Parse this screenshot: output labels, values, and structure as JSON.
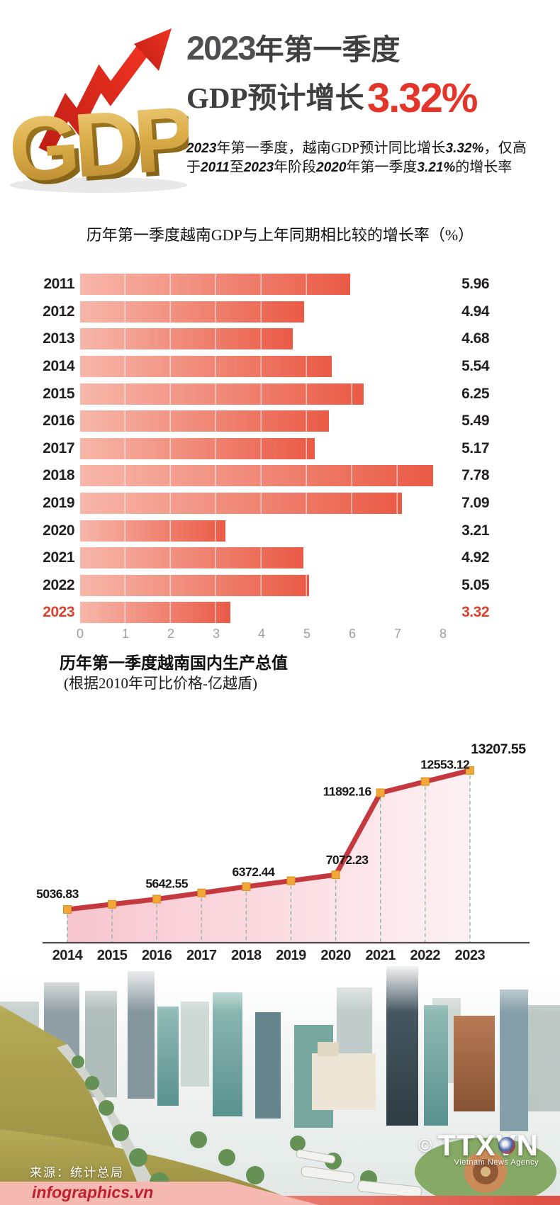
{
  "header": {
    "logo_text": "GDP",
    "title_prefix": "2023",
    "title_suffix": "年第一季度",
    "title_line2": "GDP预计增长",
    "title_value": "3.32%",
    "subtitle_segments": [
      {
        "t": "2023",
        "em": true
      },
      {
        "t": "年第一季度，越南GDP预计同比增长",
        "em": false
      },
      {
        "t": "3.32%",
        "em": true
      },
      {
        "t": "，仅高于",
        "em": false
      },
      {
        "t": "2011",
        "em": true
      },
      {
        "t": "至",
        "em": false
      },
      {
        "t": "2023",
        "em": true
      },
      {
        "t": "年阶段",
        "em": false
      },
      {
        "t": "2020",
        "em": true
      },
      {
        "t": "年第一季度",
        "em": false
      },
      {
        "t": "3.21%",
        "em": true
      },
      {
        "t": "的增长率",
        "em": false
      }
    ]
  },
  "chart_data": [
    {
      "type": "bar",
      "orientation": "horizontal",
      "title": "历年第一季度越南GDP与上年同期相比较的增长率（%）",
      "categories": [
        "2011",
        "2012",
        "2013",
        "2014",
        "2015",
        "2016",
        "2017",
        "2018",
        "2019",
        "2020",
        "2021",
        "2022",
        "2023"
      ],
      "values": [
        5.96,
        4.94,
        4.68,
        5.54,
        6.25,
        5.49,
        5.17,
        7.78,
        7.09,
        3.21,
        4.92,
        5.05,
        3.32
      ],
      "value_labels": [
        "5.96",
        "4.94",
        "4.68",
        "5.54",
        "6.25",
        "5.49",
        "5.17",
        "7.78",
        "7.09",
        "3.21",
        "4.92",
        "5.05",
        "3.32"
      ],
      "xlim": [
        0,
        8
      ],
      "x_ticks": [
        "0",
        "1",
        "2",
        "3",
        "4",
        "5",
        "6",
        "7",
        "8"
      ],
      "grid": true,
      "legend": false,
      "highlight_index": 12,
      "colors": {
        "bar_from": "#f7b7aa",
        "bar_to": "#ea5a45",
        "highlight": "#d8432f",
        "label": "#231f20",
        "tick": "#9c9ea0"
      }
    },
    {
      "type": "area",
      "title": "历年第一季度越南国内生产总值",
      "subtitle": "(根据2010年可比价格-亿越盾)",
      "x": [
        "2014",
        "2015",
        "2016",
        "2017",
        "2018",
        "2019",
        "2020",
        "2021",
        "2022",
        "2023"
      ],
      "values": [
        5036.83,
        null,
        5642.55,
        null,
        6372.44,
        null,
        7072.23,
        11892.16,
        12553.12,
        13207.55
      ],
      "point_labels": [
        "5036.83",
        "",
        "5642.55",
        "",
        "6372.44",
        "",
        "7072.23",
        "11892.16",
        "12553.12",
        "13207.55"
      ],
      "grid": false,
      "legend": false,
      "colors": {
        "line": "#c4393f",
        "marker": "#f2a838",
        "marker_edge": "#d98f1f",
        "area_from": "#f8c5ce",
        "area_to": "#fdf1f3",
        "dash": "#8ab5a9",
        "label": "#161616",
        "axis": "#4d4d4f",
        "year": "#231f20"
      }
    }
  ],
  "footer": {
    "source": "来源：统计总局",
    "brand": "infographics.vn",
    "copyright": "©",
    "agency": "TTXVN",
    "agency_subtitle": "Vietnam News Agency"
  }
}
